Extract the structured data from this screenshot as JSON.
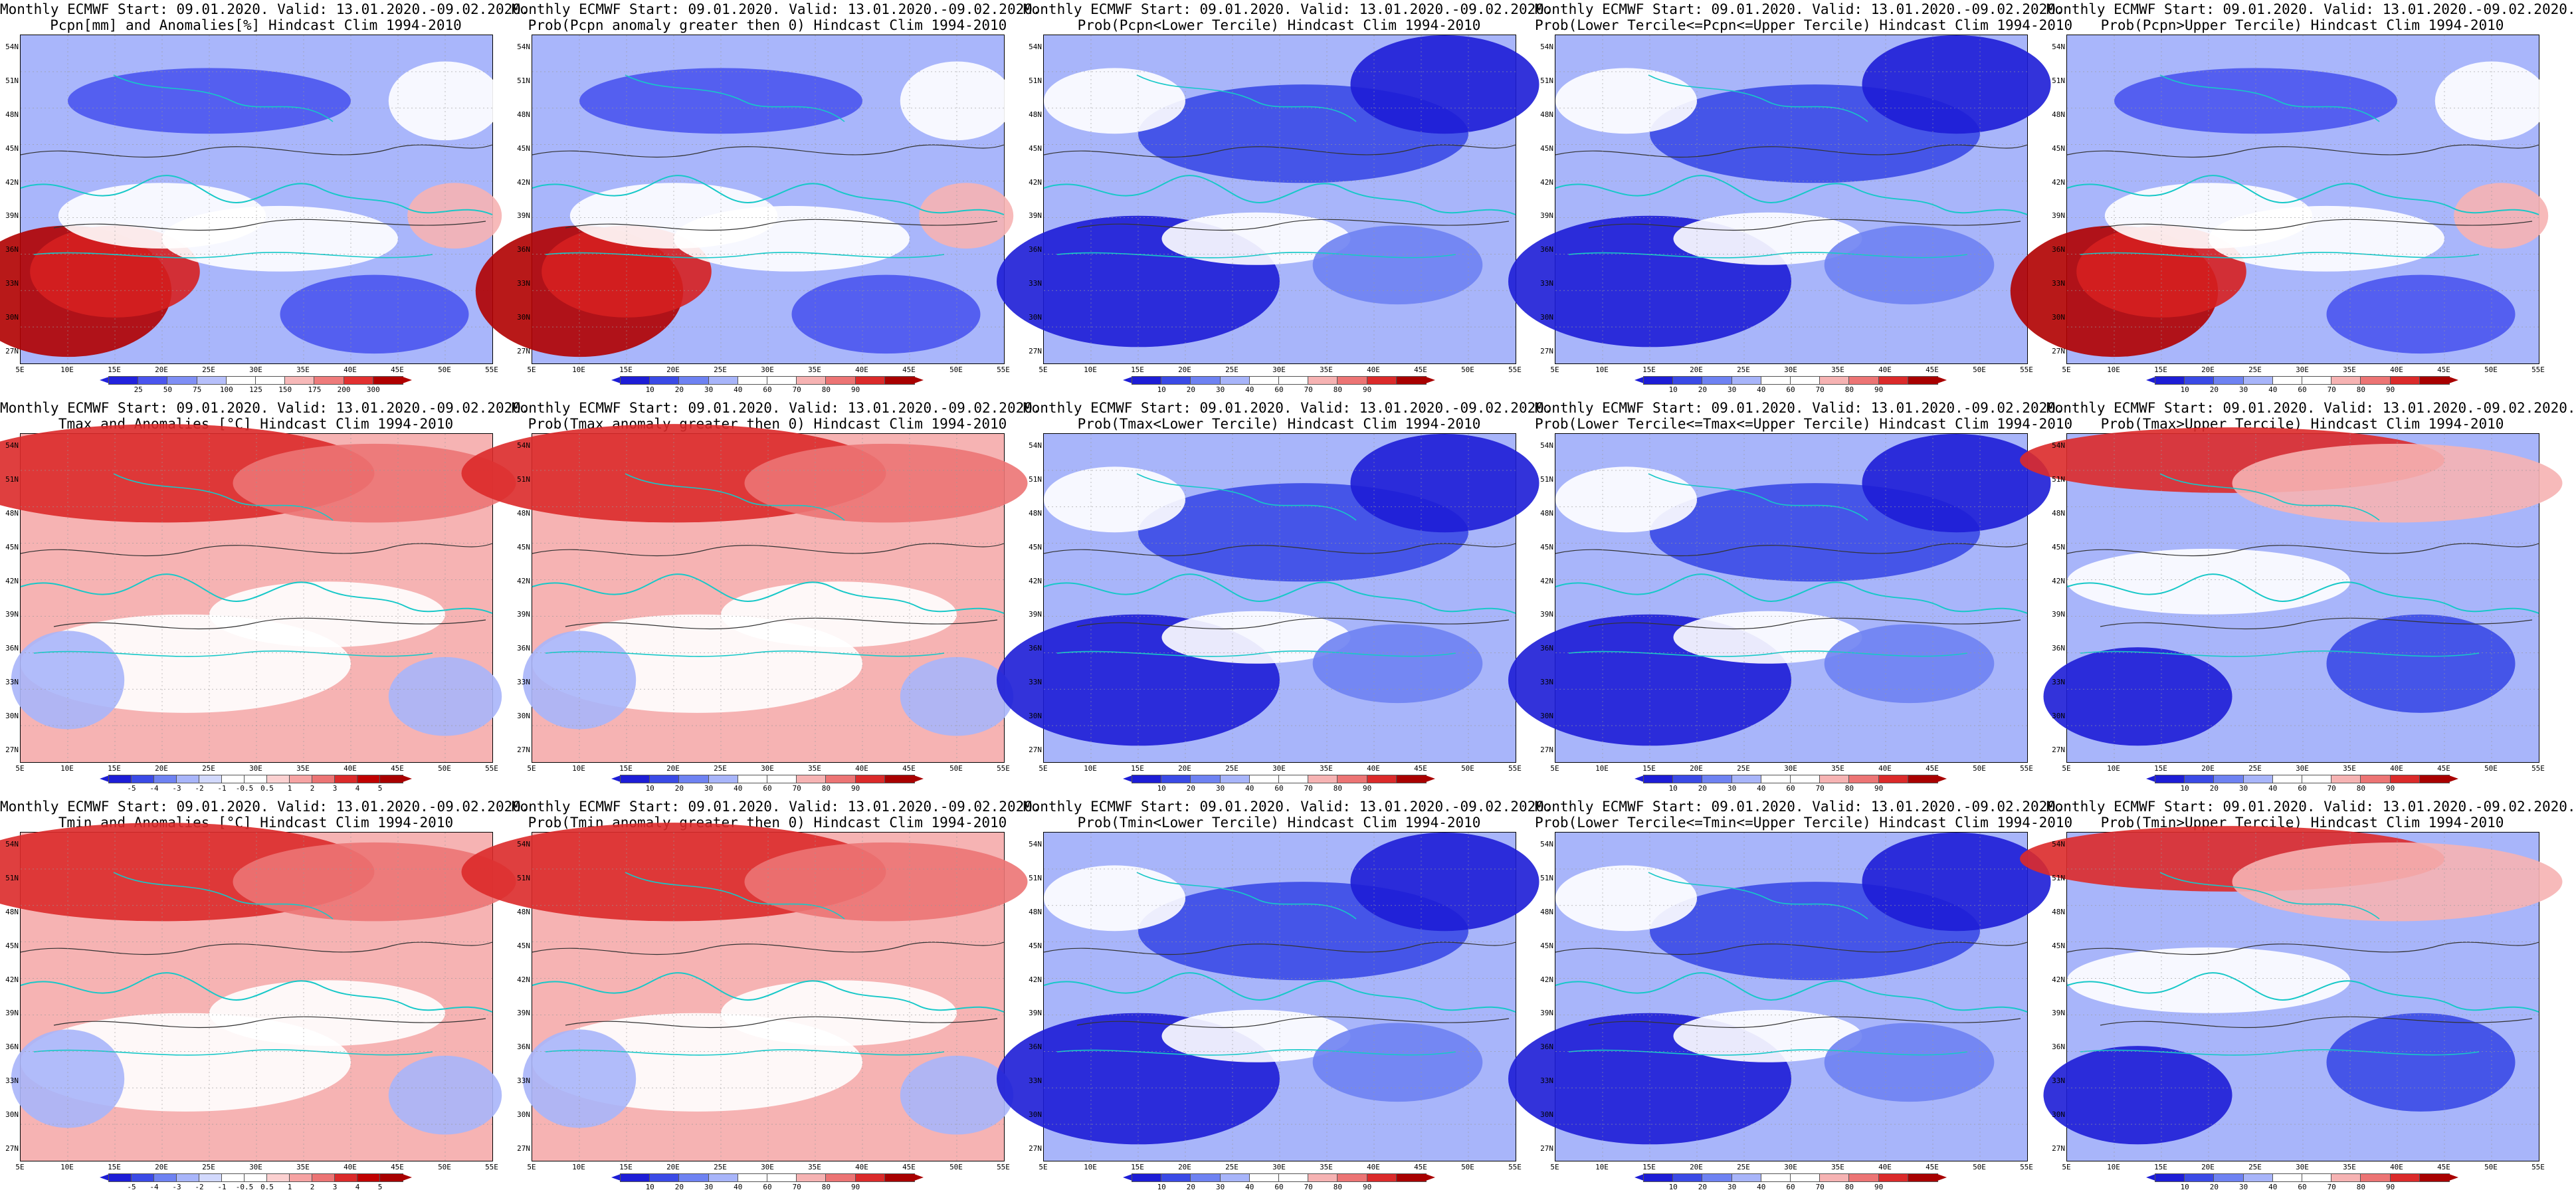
{
  "panels": [
    {
      "t1": "Monthly ECMWF Start: 09.01.2020. Valid: 13.01.2020.-09.02.2020.",
      "t2": "Pcpn[mm] and Anomalies[%] Hindcast Clim 1994-2010",
      "scheme": "precip",
      "cbar": "pcp"
    },
    {
      "t1": "Monthly ECMWF Start: 09.01.2020. Valid: 13.01.2020.-09.02.2020.",
      "t2": "Prob(Pcpn anomaly greater then 0) Hindcast Clim 1994-2010",
      "scheme": "precip",
      "cbar": "prob"
    },
    {
      "t1": "Monthly ECMWF Start: 09.01.2020. Valid: 13.01.2020.-09.02.2020.",
      "t2": "Prob(Pcpn<Lower Tercile) Hindcast Clim 1994-2010",
      "scheme": "blue",
      "cbar": "prob"
    },
    {
      "t1": "Monthly ECMWF Start: 09.01.2020. Valid: 13.01.2020.-09.02.2020.",
      "t2": "Prob(Lower Tercile<=Pcpn<=Upper Tercile) Hindcast Clim 1994-2010",
      "scheme": "blue",
      "cbar": "prob"
    },
    {
      "t1": "Monthly ECMWF Start: 09.01.2020. Valid: 13.01.2020.-09.02.2020.",
      "t2": "Prob(Pcpn>Upper Tercile) Hindcast Clim 1994-2010",
      "scheme": "precip",
      "cbar": "prob"
    },
    {
      "t1": "Monthly ECMWF Start: 09.01.2020. Valid: 13.01.2020.-09.02.2020.",
      "t2": "Tmax and Anomalies [°C] Hindcast Clim 1994-2010",
      "scheme": "warm",
      "cbar": "temp"
    },
    {
      "t1": "Monthly ECMWF Start: 09.01.2020. Valid: 13.01.2020.-09.02.2020.",
      "t2": "Prob(Tmax anomaly greater then 0) Hindcast Clim 1994-2010",
      "scheme": "warm",
      "cbar": "prob"
    },
    {
      "t1": "Monthly ECMWF Start: 09.01.2020. Valid: 13.01.2020.-09.02.2020.",
      "t2": "Prob(Tmax<Lower Tercile) Hindcast Clim 1994-2010",
      "scheme": "blue",
      "cbar": "prob"
    },
    {
      "t1": "Monthly ECMWF Start: 09.01.2020. Valid: 13.01.2020.-09.02.2020.",
      "t2": "Prob(Lower Tercile<=Tmax<=Upper Tercile) Hindcast Clim 1994-2010",
      "scheme": "blue",
      "cbar": "prob"
    },
    {
      "t1": "Monthly ECMWF Start: 09.01.2020. Valid: 13.01.2020.-09.02.2020.",
      "t2": "Prob(Tmax>Upper Tercile) Hindcast Clim 1994-2010",
      "scheme": "warmtop",
      "cbar": "prob"
    },
    {
      "t1": "Monthly ECMWF Start: 09.01.2020. Valid: 13.01.2020.-09.02.2020.",
      "t2": "Tmin and Anomalies [°C] Hindcast Clim 1994-2010",
      "scheme": "warm",
      "cbar": "temp"
    },
    {
      "t1": "Monthly ECMWF Start: 09.01.2020. Valid: 13.01.2020.-09.02.2020.",
      "t2": "Prob(Tmin anomaly greater then 0) Hindcast Clim 1994-2010",
      "scheme": "warm",
      "cbar": "prob"
    },
    {
      "t1": "Monthly ECMWF Start: 09.01.2020. Valid: 13.01.2020.-09.02.2020.",
      "t2": "Prob(Tmin<Lower Tercile) Hindcast Clim 1994-2010",
      "scheme": "blue",
      "cbar": "prob"
    },
    {
      "t1": "Monthly ECMWF Start: 09.01.2020. Valid: 13.01.2020.-09.02.2020.",
      "t2": "Prob(Lower Tercile<=Tmin<=Upper Tercile) Hindcast Clim 1994-2010",
      "scheme": "blue",
      "cbar": "prob"
    },
    {
      "t1": "Monthly ECMWF Start: 09.01.2020. Valid: 13.01.2020.-09.02.2020.",
      "t2": "Prob(Tmin>Upper Tercile) Hindcast Clim 1994-2010",
      "scheme": "warmtop",
      "cbar": "prob"
    }
  ],
  "lat_labels": [
    "54N",
    "51N",
    "48N",
    "45N",
    "42N",
    "39N",
    "36N",
    "33N",
    "30N",
    "27N"
  ],
  "lon_labels": [
    "5E",
    "10E",
    "15E",
    "20E",
    "25E",
    "30E",
    "35E",
    "40E",
    "45E",
    "50E",
    "55E"
  ],
  "colorbars": {
    "pcp": {
      "ticks": [
        "25",
        "50",
        "75",
        "100",
        "125",
        "150",
        "175",
        "200",
        "300"
      ],
      "colors": [
        "#2222dd",
        "#4a55ee",
        "#7f8ff5",
        "#b7c0fb",
        "#ffffff",
        "#ffffff",
        "#f7b9b9",
        "#ee7b7b",
        "#e23030",
        "#b00000"
      ]
    },
    "prob": {
      "ticks": [
        "10",
        "20",
        "30",
        "40",
        "60",
        "70",
        "80",
        "90"
      ],
      "colors": [
        "#1d1dd6",
        "#3a4ae6",
        "#6e82f2",
        "#a8b5fa",
        "#ffffff",
        "#ffffff",
        "#f6b3b3",
        "#ec7474",
        "#db2a2a",
        "#a80000"
      ]
    },
    "temp": {
      "ticks": [
        "-5",
        "-4",
        "-3",
        "-2",
        "-1",
        "-0.5",
        "0.5",
        "1",
        "2",
        "3",
        "4",
        "5"
      ],
      "colors": [
        "#1d1dd6",
        "#3a4ae6",
        "#6e82f2",
        "#a8b5fa",
        "#d2d9fd",
        "#ffffff",
        "#ffffff",
        "#fbd0d0",
        "#f6a3a3",
        "#ec7474",
        "#db2a2a",
        "#c00000",
        "#a80000"
      ]
    }
  }
}
